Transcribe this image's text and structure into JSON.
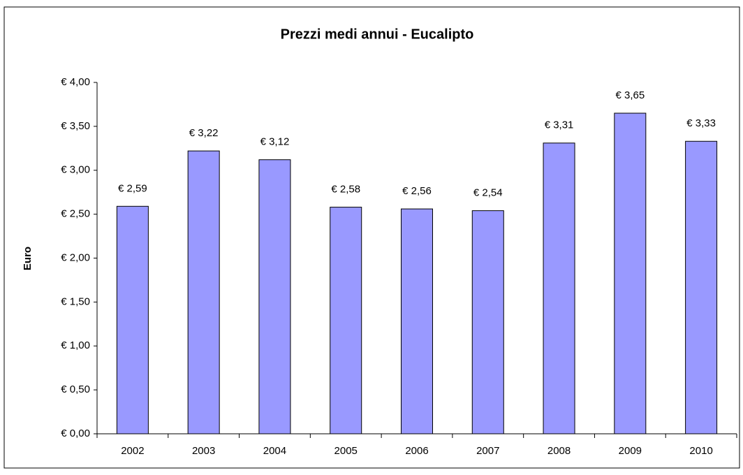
{
  "chart_data": {
    "type": "bar",
    "title": "Prezzi medi annui - Eucalipto",
    "y_label": "Euro",
    "categories": [
      "2002",
      "2003",
      "2004",
      "2005",
      "2006",
      "2007",
      "2008",
      "2009",
      "2010"
    ],
    "values": [
      2.59,
      3.22,
      3.12,
      2.58,
      2.56,
      2.54,
      3.31,
      3.65,
      3.33
    ],
    "value_labels": [
      "€ 2,59",
      "€ 3,22",
      "€ 3,12",
      "€ 2,58",
      "€ 2,56",
      "€ 2,54",
      "€ 3,31",
      "€ 3,65",
      "€ 3,33"
    ],
    "color": "#9999ff",
    "ylim": [
      0,
      4
    ],
    "yticks": [
      {
        "value": 0,
        "label": "€ 0,00"
      },
      {
        "value": 0.5,
        "label": "€ 0,50"
      },
      {
        "value": 1,
        "label": "€ 1,00"
      },
      {
        "value": 1.5,
        "label": "€ 1,50"
      },
      {
        "value": 2,
        "label": "€ 2,00"
      },
      {
        "value": 2.5,
        "label": "€ 2,50"
      },
      {
        "value": 3,
        "label": "€ 3,00"
      },
      {
        "value": 3.5,
        "label": "€ 3,50"
      },
      {
        "value": 4,
        "label": "€ 4,00"
      }
    ],
    "grid": false
  }
}
